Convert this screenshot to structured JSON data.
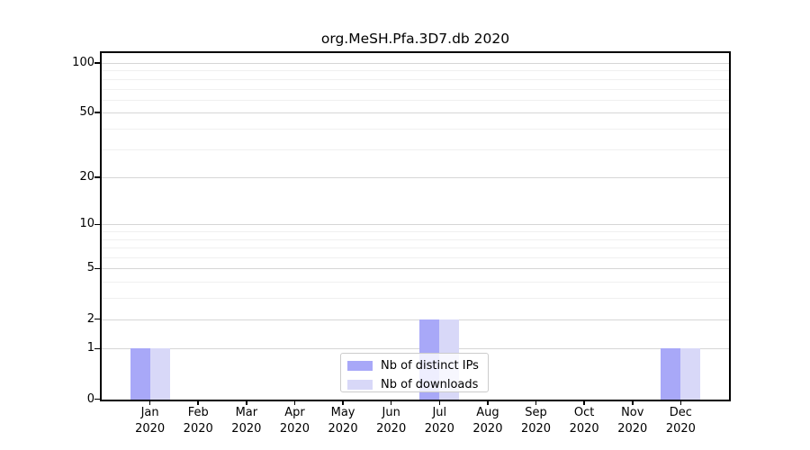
{
  "figure": {
    "background": "#ffffff"
  },
  "chart_data": {
    "type": "bar",
    "title": "org.MeSH.Pfa.3D7.db 2020",
    "categories": [
      {
        "month": "Jan",
        "year": "2020"
      },
      {
        "month": "Feb",
        "year": "2020"
      },
      {
        "month": "Mar",
        "year": "2020"
      },
      {
        "month": "Apr",
        "year": "2020"
      },
      {
        "month": "May",
        "year": "2020"
      },
      {
        "month": "Jun",
        "year": "2020"
      },
      {
        "month": "Jul",
        "year": "2020"
      },
      {
        "month": "Aug",
        "year": "2020"
      },
      {
        "month": "Sep",
        "year": "2020"
      },
      {
        "month": "Oct",
        "year": "2020"
      },
      {
        "month": "Nov",
        "year": "2020"
      },
      {
        "month": "Dec",
        "year": "2020"
      }
    ],
    "series": [
      {
        "name": "Nb of distinct IPs",
        "color": "#a8a8f8",
        "values": [
          1,
          0,
          0,
          0,
          0,
          0,
          2,
          0,
          0,
          0,
          0,
          1
        ]
      },
      {
        "name": "Nb of downloads",
        "color": "#d8d8f8",
        "values": [
          1,
          0,
          0,
          0,
          0,
          0,
          2,
          0,
          0,
          0,
          0,
          1
        ]
      }
    ],
    "xlabel": "",
    "ylabel": "",
    "yscale": "log1p",
    "ylim": [
      0,
      115
    ],
    "y_ticks": [
      0,
      1,
      2,
      5,
      10,
      20,
      50,
      100
    ],
    "y_minor_ticks": [
      3,
      4,
      6,
      7,
      8,
      9,
      30,
      40,
      60,
      70,
      80,
      90
    ],
    "grid": true,
    "legend_position": "lower center",
    "colors": {
      "major_grid": "#d6d6d6",
      "minor_grid": "#f0f0f0",
      "spine": "#000000",
      "text": "#000000"
    }
  }
}
